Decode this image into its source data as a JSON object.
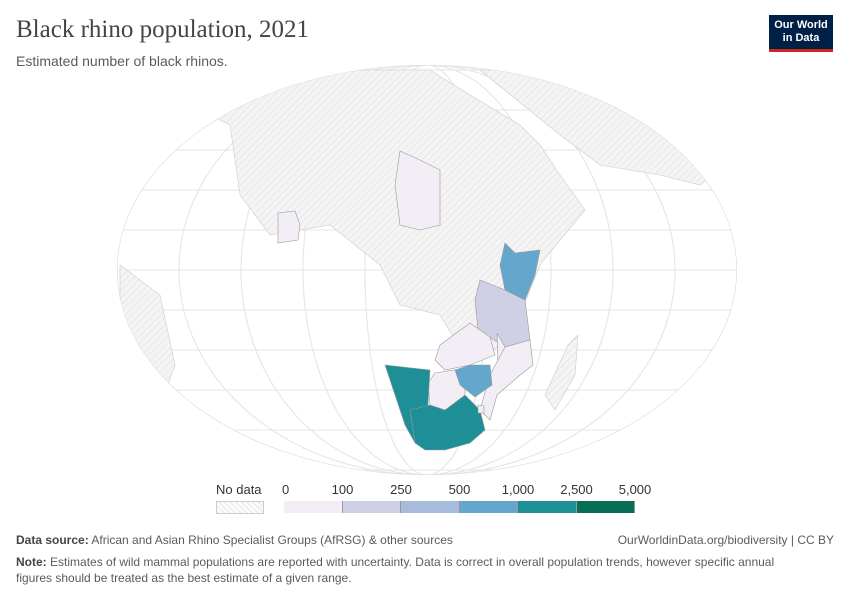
{
  "title": "Black rhino population, 2021",
  "subtitle": "Estimated number of black rhinos.",
  "logo": {
    "line1": "Our World",
    "line2": "in Data"
  },
  "legend": {
    "no_data_label": "No data",
    "bins": [
      {
        "from": "0",
        "to": "100",
        "color": "#f3eef6"
      },
      {
        "from": "100",
        "to": "250",
        "color": "#cfcfe5"
      },
      {
        "from": "250",
        "to": "500",
        "color": "#a7bbdb"
      },
      {
        "from": "500",
        "to": "1,000",
        "color": "#65a7cc"
      },
      {
        "from": "1,000",
        "to": "2,500",
        "color": "#1f8f97"
      },
      {
        "from": "2,500",
        "to": "5,000",
        "color": "#066d57"
      }
    ],
    "ticks": [
      "0",
      "100",
      "250",
      "500",
      "1,000",
      "2,500",
      "5,000"
    ]
  },
  "countries": [
    {
      "name": "Chad",
      "bin": 0
    },
    {
      "name": "Côte d'Ivoire",
      "bin": 0
    },
    {
      "name": "Kenya",
      "bin": 3
    },
    {
      "name": "Tanzania",
      "bin": 1
    },
    {
      "name": "Zambia",
      "bin": 0
    },
    {
      "name": "Malawi",
      "bin": 0
    },
    {
      "name": "Mozambique",
      "bin": 0
    },
    {
      "name": "Botswana",
      "bin": 0
    },
    {
      "name": "Zimbabwe",
      "bin": 3
    },
    {
      "name": "Namibia",
      "bin": 4
    },
    {
      "name": "South Africa",
      "bin": 4
    },
    {
      "name": "Eswatini",
      "bin": 0
    }
  ],
  "footer": {
    "source_label": "Data source:",
    "source": "African and Asian Rhino Specialist Groups (AfRSG) & other sources",
    "url": "OurWorldinData.org/biodiversity | CC BY",
    "note_label": "Note:",
    "note": "Estimates of wild mammal populations are reported with uncertainty. Data is correct in overall population trends, however specific annual figures should be treated as the best estimate of a given range."
  }
}
